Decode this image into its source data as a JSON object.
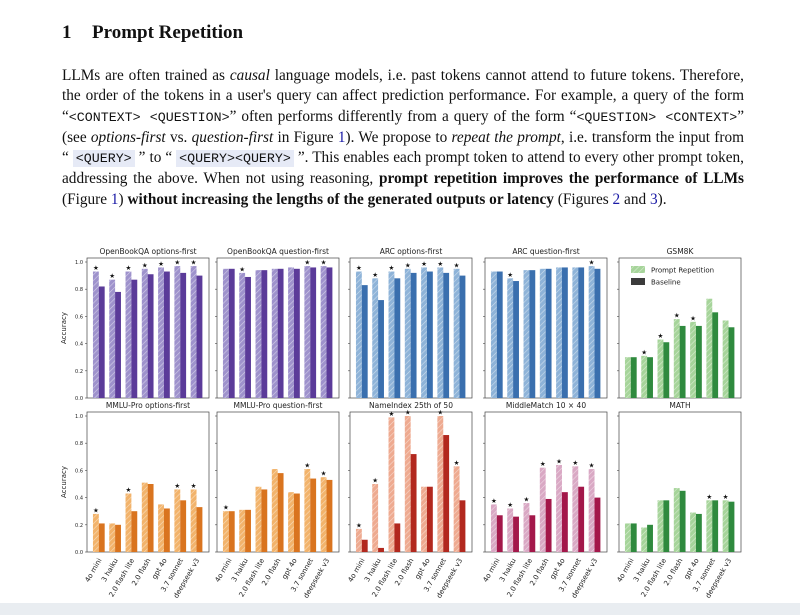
{
  "section": {
    "number": "1",
    "title": "Prompt Repetition"
  },
  "paragraph": {
    "s1a": "LLMs are often trained as ",
    "s1b": "causal",
    "s1c": " language models, i.e. past tokens cannot attend to future tokens. Therefore, the order of the tokens in a user's query can affect prediction performance. For example, a query of the form “",
    "c1": "<CONTEXT> <QUESTION>",
    "s2": "” often performs differently from a query of the form “",
    "c2": "<QUESTION> <CONTEXT>",
    "s3": "” (see ",
    "s3i": "options-first",
    "s3b": " vs. ",
    "s3j": "question-first",
    "s3c": " in Figure ",
    "ref1": "1",
    "s3d": "). We propose to ",
    "s3e": "repeat the prompt",
    "s3f": ", i.e. transform the input from “ ",
    "c3": "<QUERY>",
    "s4": " ” to “ ",
    "c4": "<QUERY><QUERY>",
    "s5": " ”. This enables each prompt token to attend to every other prompt token, addressing the above. When not using reasoning, ",
    "b1": "prompt repetition improves the performance of LLMs",
    "s6": " (Figure ",
    "ref2": "1",
    "s7": ") ",
    "b2": "without increasing the lengths of the generated outputs or latency",
    "s8": " (Figures ",
    "ref3": "2",
    "s9": " and ",
    "ref4": "3",
    "s10": ")."
  },
  "colors": {
    "purple_dark": "#5b3b99",
    "purple_light": "#9e92cc",
    "blue_dark": "#3a6fae",
    "blue_light": "#8eb3d8",
    "green_dark": "#2f8a3e",
    "green_light": "#a6d49a",
    "orange_dark": "#d9741f",
    "orange_light": "#f2b36b",
    "red_dark": "#b2281e",
    "red_light": "#eeaa90",
    "crimson_dark": "#a3174a",
    "crimson_light": "#d9a8c4"
  },
  "chart_data": {
    "type": "bar",
    "ylabel": "Accuracy",
    "yticks": [
      "0.0",
      "0.2",
      "0.4",
      "0.6",
      "0.8",
      "1.0"
    ],
    "ylim": [
      0,
      1.0
    ],
    "models_row1": [
      "4o mini",
      "3 haiku",
      "2.0 flash lite",
      "2.0 flash",
      "gpt 4o",
      "3.7 sonnet",
      "deepseek v3"
    ],
    "models": [
      "4o mini",
      "3 haiku",
      "2.0 flash lite",
      "2.0 flash",
      "gpt 4o",
      "3.7 sonnet",
      "deepseek v3"
    ],
    "legend": {
      "repetition": "Prompt Repetition",
      "baseline": "Baseline"
    },
    "panels": [
      {
        "title": "OpenBookQA options-first",
        "palette": "purple",
        "repetition": [
          0.93,
          0.87,
          0.93,
          0.95,
          0.96,
          0.97,
          0.97
        ],
        "baseline": [
          0.82,
          0.78,
          0.87,
          0.91,
          0.93,
          0.92,
          0.9
        ],
        "star": [
          true,
          true,
          true,
          true,
          true,
          true,
          true
        ]
      },
      {
        "title": "OpenBookQA question-first",
        "palette": "purple",
        "repetition": [
          0.95,
          0.92,
          0.94,
          0.95,
          0.96,
          0.97,
          0.97
        ],
        "baseline": [
          0.95,
          0.89,
          0.94,
          0.95,
          0.95,
          0.96,
          0.96
        ],
        "star": [
          false,
          true,
          false,
          false,
          false,
          true,
          true
        ]
      },
      {
        "title": "ARC options-first",
        "palette": "blue",
        "repetition": [
          0.93,
          0.88,
          0.93,
          0.95,
          0.96,
          0.96,
          0.95
        ],
        "baseline": [
          0.83,
          0.72,
          0.88,
          0.92,
          0.93,
          0.92,
          0.9
        ],
        "star": [
          true,
          true,
          true,
          true,
          true,
          true,
          true
        ]
      },
      {
        "title": "ARC question-first",
        "palette": "blue",
        "repetition": [
          0.93,
          0.88,
          0.94,
          0.95,
          0.96,
          0.96,
          0.97
        ],
        "baseline": [
          0.93,
          0.86,
          0.94,
          0.95,
          0.96,
          0.96,
          0.95
        ],
        "star": [
          false,
          true,
          false,
          false,
          false,
          false,
          true
        ]
      },
      {
        "title": "GSM8K",
        "palette": "green",
        "legend": true,
        "repetition": [
          0.3,
          0.31,
          0.43,
          0.58,
          0.56,
          0.73,
          0.57
        ],
        "baseline": [
          0.3,
          0.3,
          0.41,
          0.53,
          0.53,
          0.63,
          0.52
        ],
        "star": [
          false,
          true,
          true,
          true,
          true,
          false,
          false
        ]
      },
      {
        "title": "MMLU-Pro options-first",
        "palette": "orange",
        "repetition": [
          0.28,
          0.21,
          0.43,
          0.51,
          0.35,
          0.46,
          0.46
        ],
        "baseline": [
          0.21,
          0.2,
          0.3,
          0.5,
          0.32,
          0.38,
          0.33
        ],
        "star": [
          true,
          false,
          true,
          false,
          false,
          true,
          true
        ]
      },
      {
        "title": "MMLU-Pro question-first",
        "palette": "orange",
        "repetition": [
          0.3,
          0.31,
          0.48,
          0.61,
          0.44,
          0.61,
          0.55
        ],
        "baseline": [
          0.3,
          0.31,
          0.46,
          0.58,
          0.43,
          0.54,
          0.53
        ],
        "star": [
          true,
          false,
          false,
          false,
          false,
          true,
          true
        ]
      },
      {
        "title": "NameIndex 25th of 50",
        "palette": "red",
        "repetition": [
          0.17,
          0.5,
          0.99,
          1.0,
          0.48,
          1.0,
          0.63
        ],
        "baseline": [
          0.09,
          0.03,
          0.21,
          0.72,
          0.48,
          0.86,
          0.38
        ],
        "star": [
          true,
          true,
          true,
          true,
          false,
          true,
          true
        ]
      },
      {
        "title": "MiddleMatch 10 × 40",
        "palette": "crimson",
        "repetition": [
          0.35,
          0.32,
          0.36,
          0.62,
          0.64,
          0.63,
          0.61
        ],
        "baseline": [
          0.27,
          0.26,
          0.27,
          0.39,
          0.44,
          0.48,
          0.4
        ],
        "star": [
          true,
          true,
          true,
          true,
          true,
          true,
          true
        ]
      },
      {
        "title": "MATH",
        "palette": "green",
        "repetition": [
          0.21,
          0.18,
          0.38,
          0.47,
          0.29,
          0.38,
          0.38
        ],
        "baseline": [
          0.21,
          0.2,
          0.38,
          0.45,
          0.28,
          0.38,
          0.37
        ],
        "star": [
          false,
          false,
          false,
          false,
          false,
          true,
          true
        ]
      }
    ]
  }
}
